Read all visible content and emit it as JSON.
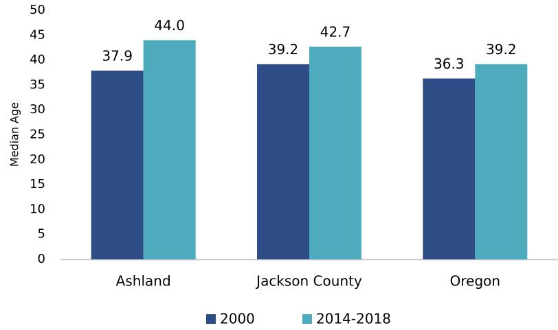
{
  "chart_data": {
    "type": "bar",
    "y_label": "Median Age",
    "categories": [
      "Ashland",
      "Jackson County",
      "Oregon"
    ],
    "series": [
      {
        "name": "2000",
        "color": "#2e4d87",
        "values": [
          37.9,
          39.2,
          36.3
        ],
        "value_labels": [
          "37.9",
          "39.2",
          "36.3"
        ]
      },
      {
        "name": "2014-2018",
        "color": "#4eabbd",
        "values": [
          44.0,
          42.7,
          39.2
        ],
        "value_labels": [
          "44.0",
          "42.7",
          "39.2"
        ]
      }
    ],
    "ylim": [
      0,
      50
    ],
    "yticks": [
      0,
      5,
      10,
      15,
      20,
      25,
      30,
      35,
      40,
      45,
      50
    ],
    "grid": false,
    "legend": "bottom"
  }
}
